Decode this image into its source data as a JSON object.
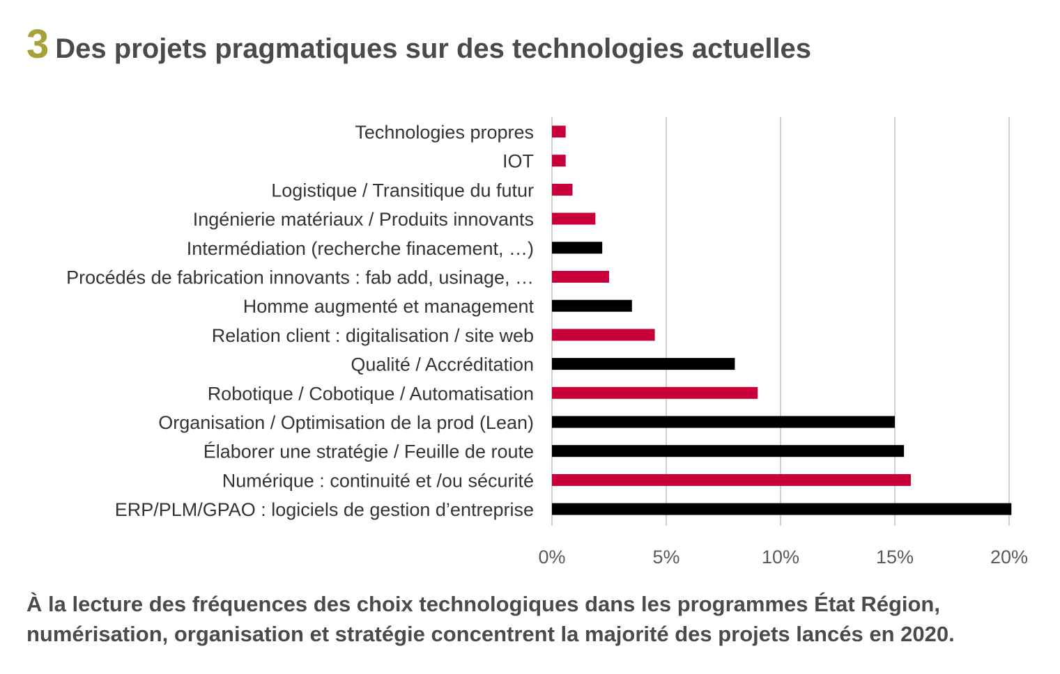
{
  "figure": {
    "number": "3",
    "title": "Des projets pragmatiques sur des technologies actuelles"
  },
  "caption": {
    "line1": "À la lecture des fréquences des choix technologiques dans les programmes État Région,",
    "line2": "numérisation, organisation et stratégie concentrent la majorité des projets lancés en 2020."
  },
  "colors": {
    "red": "#c8003a",
    "black": "#000000",
    "grid": "#d0d0d0"
  },
  "chart_data": {
    "type": "bar",
    "orientation": "horizontal",
    "title": "Des projets pragmatiques sur des technologies actuelles",
    "xlabel": "",
    "ylabel": "",
    "xlim": [
      0,
      20
    ],
    "x_ticks": [
      0,
      5,
      10,
      15,
      20
    ],
    "x_tick_labels": [
      "0%",
      "5%",
      "10%",
      "15%",
      "20%"
    ],
    "grid": true,
    "legend": "none",
    "categories": [
      "Technologies propres",
      "IOT",
      "Logistique / Transitique du futur",
      "Ingénierie matériaux / Produits innovants",
      "Intermédiation (recherche finacement, …)",
      "Procédés de fabrication innovants : fab add, usinage, …",
      "Homme augmenté et management",
      "Relation client : digitalisation / site web",
      "Qualité / Accréditation",
      "Robotique / Cobotique / Automatisation",
      "Organisation / Optimisation de la prod (Lean)",
      "Élaborer une stratégie / Feuille de route",
      "Numérique : continuité et /ou sécurité",
      "ERP/PLM/GPAO : logiciels de gestion d’entreprise"
    ],
    "values": [
      0.6,
      0.6,
      0.9,
      1.9,
      2.2,
      2.5,
      3.5,
      4.5,
      8.0,
      9.0,
      15.0,
      15.4,
      15.7,
      20.1
    ],
    "bar_colors": [
      "red",
      "red",
      "red",
      "red",
      "black",
      "red",
      "black",
      "red",
      "black",
      "red",
      "black",
      "black",
      "red",
      "black"
    ]
  }
}
